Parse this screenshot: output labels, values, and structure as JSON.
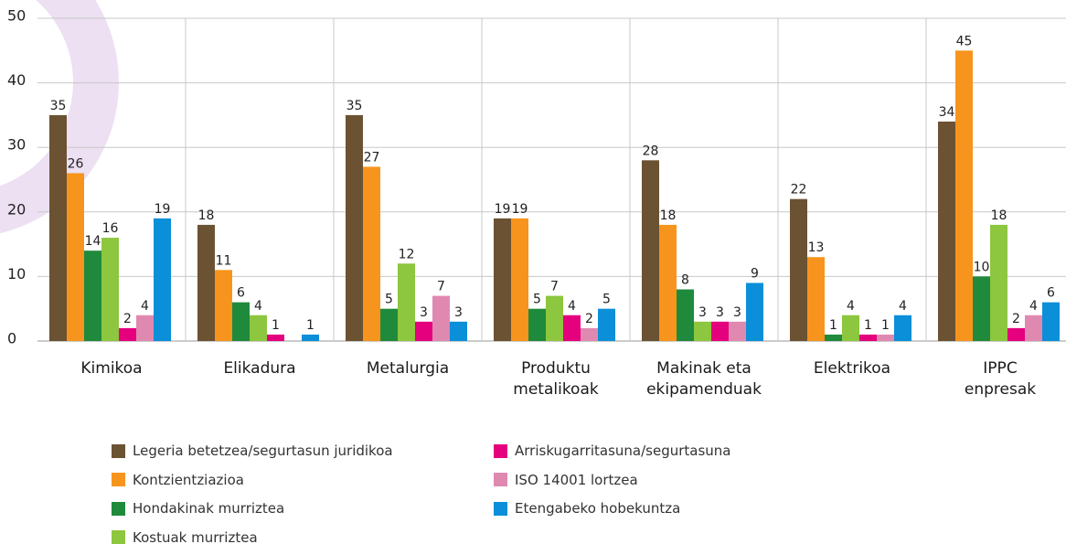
{
  "chart_data": {
    "type": "bar",
    "categories": [
      "Kimikoa",
      "Elikadura",
      "Metalurgia",
      "Produktu\nmetalikoak",
      "Makinak eta\nekipamenduak",
      "Elektrikoa",
      "IPPC\nenpresak"
    ],
    "series": [
      {
        "name": "Legeria betetzea/segurtasun juridikoa",
        "color": "#6b5233",
        "values": [
          35,
          18,
          35,
          19,
          28,
          22,
          34
        ]
      },
      {
        "name": "Kontzientziazioa",
        "color": "#f7941d",
        "values": [
          26,
          11,
          27,
          19,
          18,
          13,
          45
        ]
      },
      {
        "name": "Hondakinak murriztea",
        "color": "#1f8a3b",
        "values": [
          14,
          6,
          5,
          5,
          8,
          1,
          10
        ]
      },
      {
        "name": "Kostuak murriztea",
        "color": "#8dc63f",
        "values": [
          16,
          4,
          12,
          7,
          3,
          4,
          18
        ]
      },
      {
        "name": "Arriskugarritasuna/segurtasuna",
        "color": "#e5007d",
        "values": [
          2,
          1,
          3,
          4,
          3,
          1,
          2
        ]
      },
      {
        "name": "ISO 14001 lortzea",
        "color": "#e089b0",
        "values": [
          4,
          null,
          7,
          2,
          3,
          1,
          4
        ]
      },
      {
        "name": "Etengabeko hobekuntza",
        "color": "#0a8fd8",
        "values": [
          19,
          1,
          3,
          5,
          9,
          4,
          6
        ]
      }
    ],
    "ylim": [
      0,
      50
    ],
    "yticks": [
      0,
      10,
      20,
      30,
      40,
      50
    ],
    "grid": true
  }
}
